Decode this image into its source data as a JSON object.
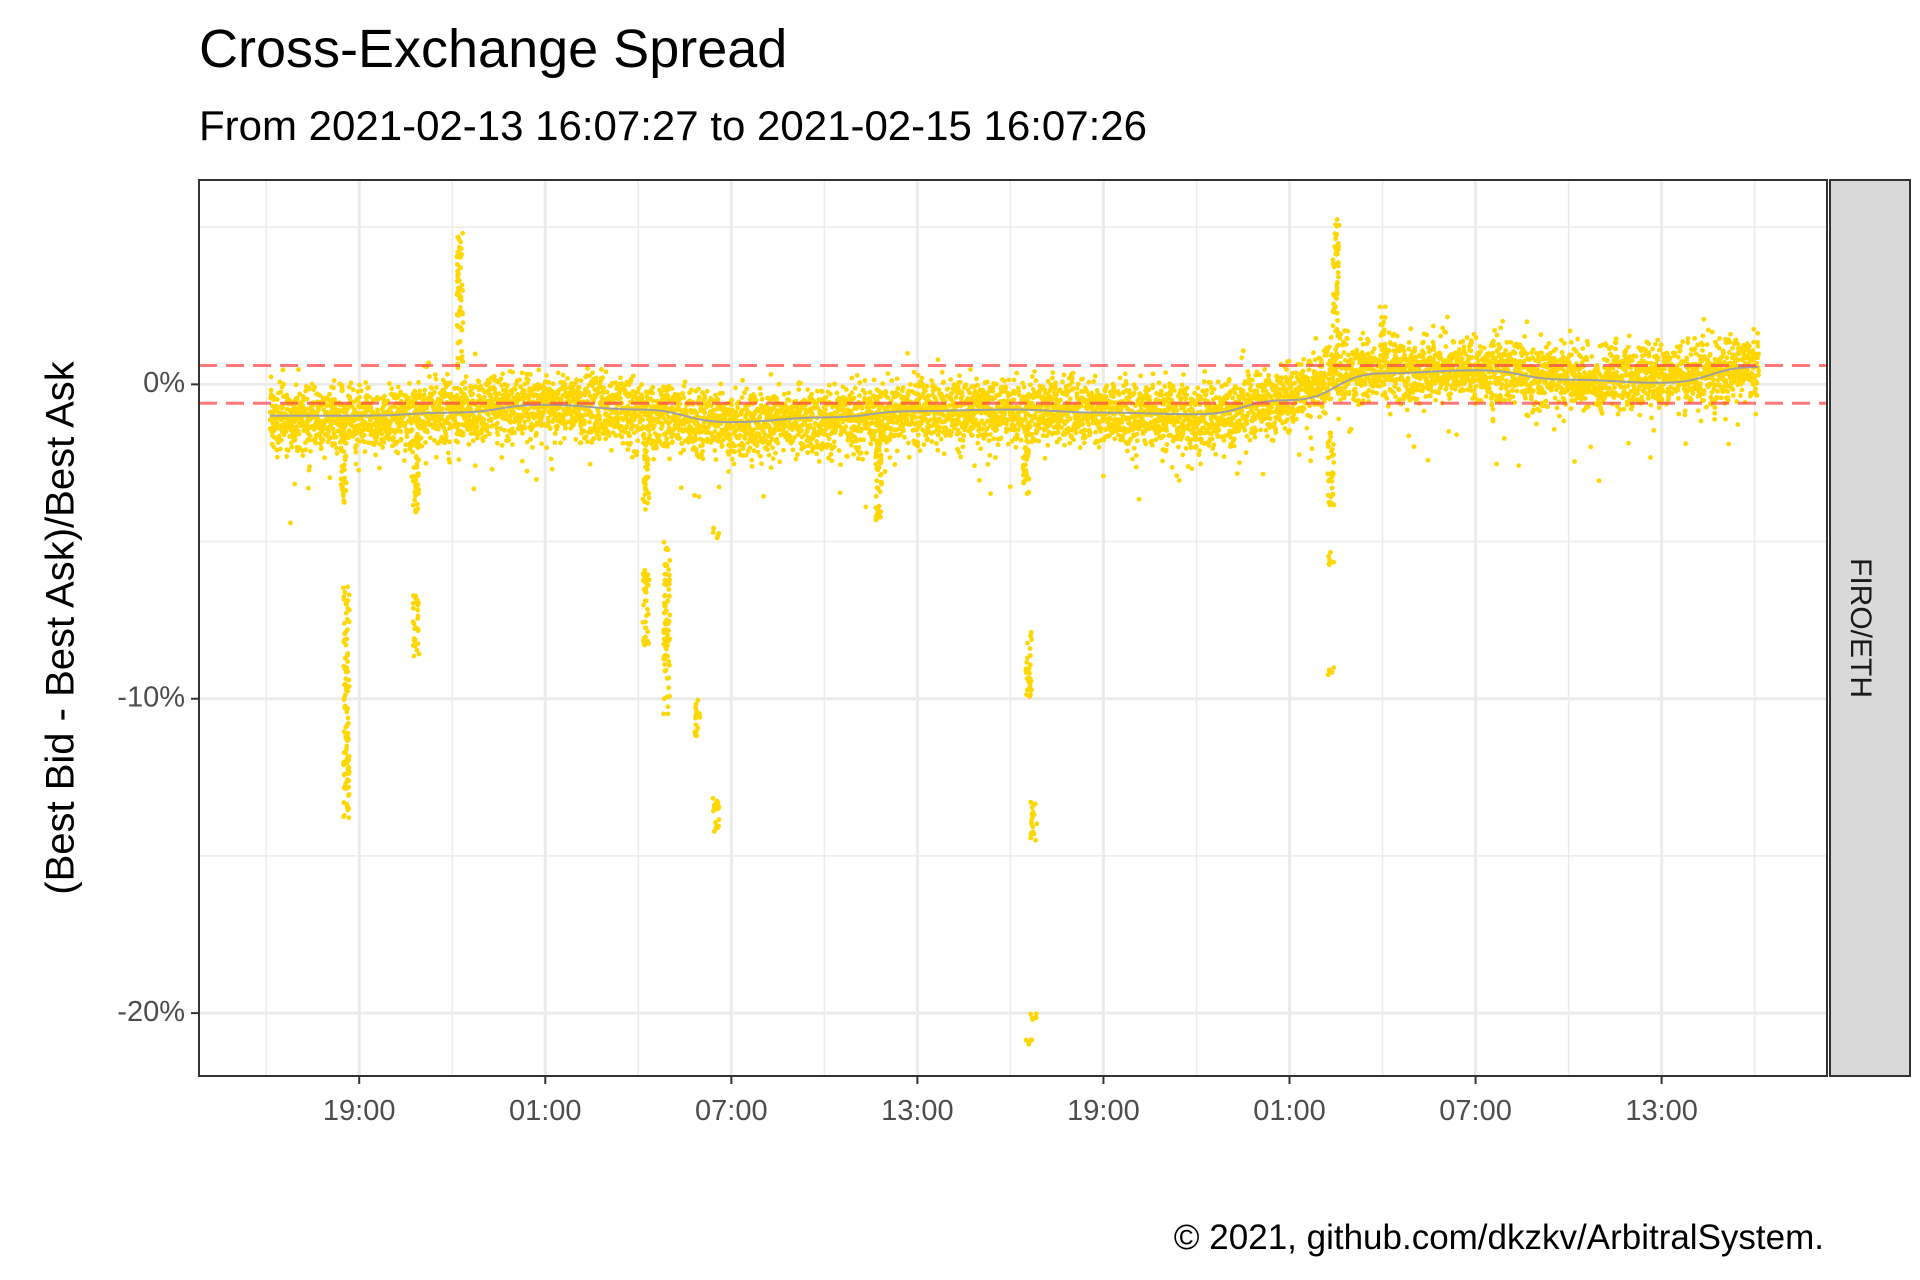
{
  "chart_data": {
    "type": "scatter",
    "title": "Cross-Exchange Spread",
    "subtitle": "From 2021-02-13 16:07:27 to 2021-02-15 16:07:26",
    "ylabel": "(Best Bid - Best Ask)/Best Ask",
    "xlabel": "",
    "caption": "© 2021, github.com/dkzkv/ArbitralSystem.",
    "facet_label": "FIRO/ETH",
    "x_range": [
      "2021-02-13 16:07:27",
      "2021-02-15 16:07:26"
    ],
    "xlim": [
      "2021-02-13 13:50",
      "2021-02-15 18:20"
    ],
    "ylim": [
      -22.0,
      6.5
    ],
    "x_tick_labels": [
      {
        "time": "2021-02-13 19:00",
        "label": "19:00"
      },
      {
        "time": "2021-02-14 01:00",
        "label": "01:00"
      },
      {
        "time": "2021-02-14 07:00",
        "label": "07:00"
      },
      {
        "time": "2021-02-14 13:00",
        "label": "13:00"
      },
      {
        "time": "2021-02-14 19:00",
        "label": "19:00"
      },
      {
        "time": "2021-02-15 01:00",
        "label": "01:00"
      },
      {
        "time": "2021-02-15 07:00",
        "label": "07:00"
      },
      {
        "time": "2021-02-15 13:00",
        "label": "13:00"
      }
    ],
    "y_ticks": [
      {
        "value": 0,
        "label": "0%"
      },
      {
        "value": -10,
        "label": "-10%"
      },
      {
        "value": -20,
        "label": "-20%"
      }
    ],
    "y_minor_gridlines": [
      5,
      -5,
      -15
    ],
    "grid": true,
    "threshold_lines": [
      0.6,
      -0.6
    ],
    "colors": {
      "points": "#FFD700",
      "smooth": "#A0A0A0",
      "threshold": "#FF4B4B",
      "strip": "#D9D9D9",
      "grid": "#EBEBEB",
      "frame": "#333333"
    },
    "series": [
      {
        "type": "trend",
        "points": [
          [
            "2021-02-13 16:07",
            -1.0
          ],
          [
            "2021-02-13 19:00",
            -1.0
          ],
          [
            "2021-02-13 22:00",
            -0.9
          ],
          [
            "2021-02-14 01:00",
            -0.65
          ],
          [
            "2021-02-14 04:00",
            -0.8
          ],
          [
            "2021-02-14 07:00",
            -1.2
          ],
          [
            "2021-02-14 10:00",
            -1.05
          ],
          [
            "2021-02-14 13:00",
            -0.85
          ],
          [
            "2021-02-14 16:00",
            -0.8
          ],
          [
            "2021-02-14 19:00",
            -0.9
          ],
          [
            "2021-02-14 22:00",
            -0.95
          ],
          [
            "2021-02-15 01:00",
            -0.5
          ],
          [
            "2021-02-15 04:00",
            0.35
          ],
          [
            "2021-02-15 07:00",
            0.45
          ],
          [
            "2021-02-15 10:00",
            0.15
          ],
          [
            "2021-02-15 13:00",
            0.05
          ],
          [
            "2021-02-15 16:07",
            0.55
          ]
        ]
      },
      {
        "type": "scatter",
        "band_center": [
          [
            "2021-02-13 16:07",
            -1.1
          ],
          [
            "2021-02-13 19:00",
            -1.1
          ],
          [
            "2021-02-13 21:00",
            -1.0
          ],
          [
            "2021-02-13 23:00",
            -0.8
          ],
          [
            "2021-02-14 01:00",
            -0.7
          ],
          [
            "2021-02-14 04:00",
            -0.9
          ],
          [
            "2021-02-14 07:00",
            -1.3
          ],
          [
            "2021-02-14 10:00",
            -1.1
          ],
          [
            "2021-02-14 13:00",
            -0.9
          ],
          [
            "2021-02-14 16:00",
            -0.8
          ],
          [
            "2021-02-14 19:00",
            -0.9
          ],
          [
            "2021-02-14 22:00",
            -1.0
          ],
          [
            "2021-02-15 01:00",
            -0.5
          ],
          [
            "2021-02-15 02:30",
            0.5
          ],
          [
            "2021-02-15 04:00",
            0.4
          ],
          [
            "2021-02-15 07:00",
            0.5
          ],
          [
            "2021-02-15 10:00",
            0.2
          ],
          [
            "2021-02-15 13:00",
            0.2
          ],
          [
            "2021-02-15 16:07",
            0.5
          ]
        ],
        "band_halfwidth": 1.1,
        "clusters": [
          {
            "time": "2021-02-13 18:35",
            "y_from": -6.3,
            "y_to": -13.8
          },
          {
            "time": "2021-02-13 18:30",
            "y_from": -1.5,
            "y_to": -3.8
          },
          {
            "time": "2021-02-13 20:50",
            "y_from": -6.7,
            "y_to": -8.8
          },
          {
            "time": "2021-02-13 20:50",
            "y_from": -1.5,
            "y_to": -4.1
          },
          {
            "time": "2021-02-13 22:15",
            "y_from": 0.5,
            "y_to": 4.9
          },
          {
            "time": "2021-02-14 04:15",
            "y_from": -1.5,
            "y_to": -4.0
          },
          {
            "time": "2021-02-14 04:15",
            "y_from": -5.8,
            "y_to": -8.3
          },
          {
            "time": "2021-02-14 04:55",
            "y_from": -5.0,
            "y_to": -10.5
          },
          {
            "time": "2021-02-14 05:55",
            "y_from": -10.0,
            "y_to": -11.2
          },
          {
            "time": "2021-02-14 06:30",
            "y_from": -12.9,
            "y_to": -14.3
          },
          {
            "time": "2021-02-14 06:30",
            "y_from": -4.5,
            "y_to": -4.9
          },
          {
            "time": "2021-02-14 11:45",
            "y_from": -1.5,
            "y_to": -4.6
          },
          {
            "time": "2021-02-14 16:30",
            "y_from": -1.5,
            "y_to": -3.5
          },
          {
            "time": "2021-02-14 16:35",
            "y_from": -7.8,
            "y_to": -10.0
          },
          {
            "time": "2021-02-14 16:45",
            "y_from": -13.2,
            "y_to": -14.5
          },
          {
            "time": "2021-02-14 16:45",
            "y_from": -20.0,
            "y_to": -20.3
          },
          {
            "time": "2021-02-14 16:35",
            "y_from": -20.8,
            "y_to": -21.0
          },
          {
            "time": "2021-02-15 02:20",
            "y_from": -1.5,
            "y_to": -4.0
          },
          {
            "time": "2021-02-15 02:20",
            "y_from": -5.3,
            "y_to": -5.8
          },
          {
            "time": "2021-02-15 02:20",
            "y_from": -9.0,
            "y_to": -9.3
          },
          {
            "time": "2021-02-15 02:30",
            "y_from": 1.5,
            "y_to": 5.3
          },
          {
            "time": "2021-02-15 04:00",
            "y_from": 1.2,
            "y_to": 2.5
          }
        ]
      }
    ]
  }
}
